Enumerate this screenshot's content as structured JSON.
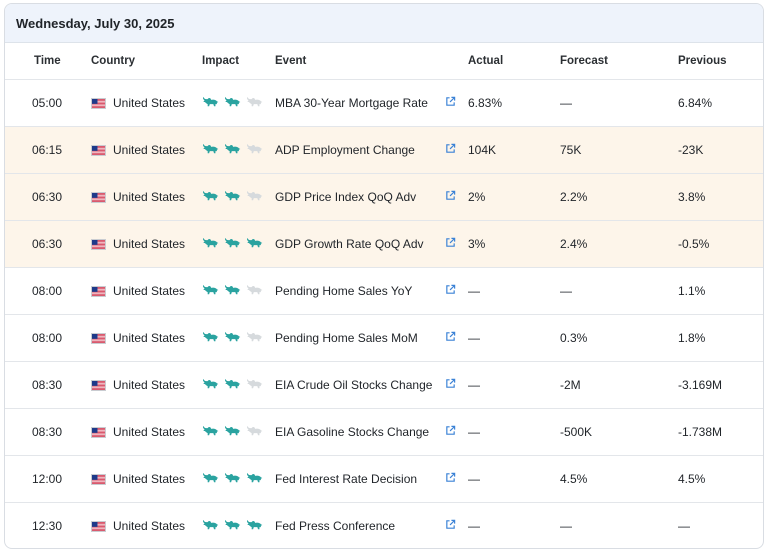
{
  "date_header": "Wednesday, July 30, 2025",
  "columns": {
    "time": "Time",
    "country": "Country",
    "impact": "Impact",
    "event": "Event",
    "actual": "Actual",
    "forecast": "Forecast",
    "previous": "Previous"
  },
  "colors": {
    "bull_active": "#2aa3a0",
    "bull_inactive": "#d6dadd",
    "link": "#3b82d6",
    "highlight_row": "#fdf5ea",
    "date_bar": "#eef3fb"
  },
  "rows": [
    {
      "time": "05:00",
      "country": "United States",
      "impact": 2,
      "event": "MBA 30-Year Mortgage Rate",
      "actual": "6.83%",
      "forecast": "—",
      "previous": "6.84%",
      "highlight": false
    },
    {
      "time": "06:15",
      "country": "United States",
      "impact": 2,
      "event": "ADP Employment Change",
      "actual": "104K",
      "forecast": "75K",
      "previous": "-23K",
      "highlight": true
    },
    {
      "time": "06:30",
      "country": "United States",
      "impact": 2,
      "event": "GDP Price Index QoQ Adv",
      "actual": "2%",
      "forecast": "2.2%",
      "previous": "3.8%",
      "highlight": true
    },
    {
      "time": "06:30",
      "country": "United States",
      "impact": 3,
      "event": "GDP Growth Rate QoQ Adv",
      "actual": "3%",
      "forecast": "2.4%",
      "previous": "-0.5%",
      "highlight": true
    },
    {
      "time": "08:00",
      "country": "United States",
      "impact": 2,
      "event": "Pending Home Sales YoY",
      "actual": "—",
      "forecast": "—",
      "previous": "1.1%",
      "highlight": false
    },
    {
      "time": "08:00",
      "country": "United States",
      "impact": 2,
      "event": "Pending Home Sales MoM",
      "actual": "—",
      "forecast": "0.3%",
      "previous": "1.8%",
      "highlight": false
    },
    {
      "time": "08:30",
      "country": "United States",
      "impact": 2,
      "event": "EIA Crude Oil Stocks Change",
      "actual": "—",
      "forecast": "-2M",
      "previous": "-3.169M",
      "highlight": false
    },
    {
      "time": "08:30",
      "country": "United States",
      "impact": 2,
      "event": "EIA Gasoline Stocks Change",
      "actual": "—",
      "forecast": "-500K",
      "previous": "-1.738M",
      "highlight": false
    },
    {
      "time": "12:00",
      "country": "United States",
      "impact": 3,
      "event": "Fed Interest Rate Decision",
      "actual": "—",
      "forecast": "4.5%",
      "previous": "4.5%",
      "highlight": false
    },
    {
      "time": "12:30",
      "country": "United States",
      "impact": 3,
      "event": "Fed Press Conference",
      "actual": "—",
      "forecast": "—",
      "previous": "—",
      "highlight": false
    }
  ]
}
